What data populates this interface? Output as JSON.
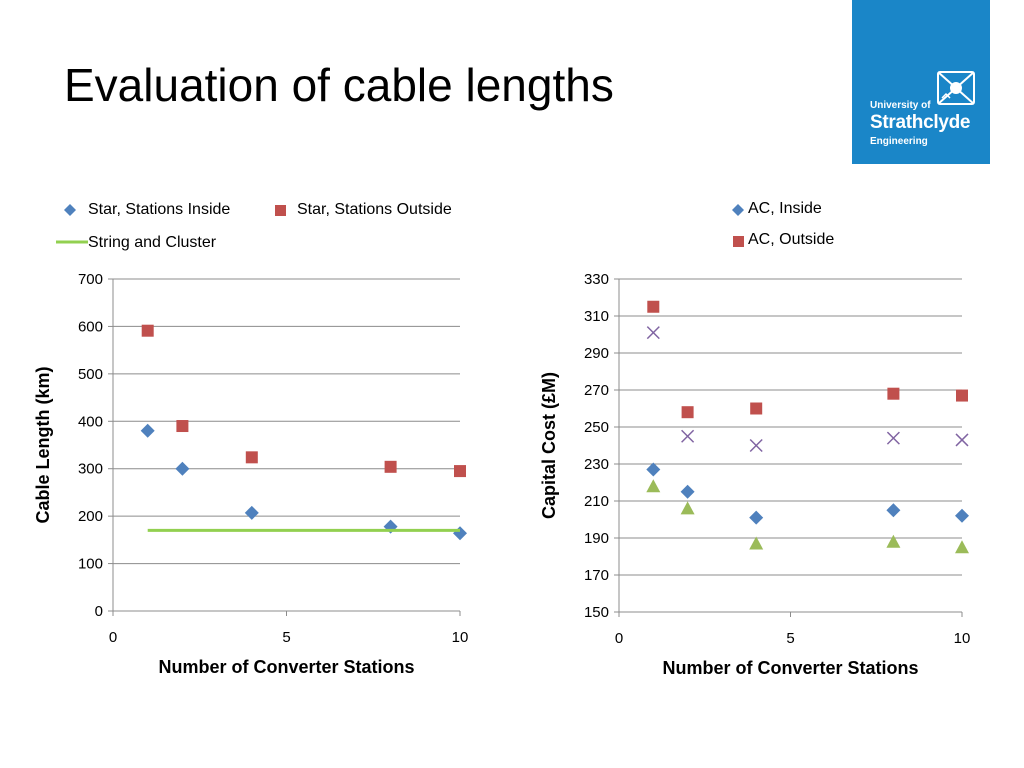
{
  "slide": {
    "title": "Evaluation of cable lengths",
    "logo": {
      "line1": "University of",
      "line2": "Strathclyde",
      "line3": "Engineering",
      "background": "#1a86c8"
    }
  },
  "chart_data": [
    {
      "type": "scatter",
      "title": "",
      "xlabel": "Number of Converter Stations",
      "ylabel": "Cable Length (km)",
      "xlim": [
        0,
        10
      ],
      "ylim": [
        0,
        700
      ],
      "xticks": [
        0,
        5,
        10
      ],
      "yticks": [
        0,
        100,
        200,
        300,
        400,
        500,
        600,
        700
      ],
      "grid": "horizontal",
      "legend_position": "top",
      "series": [
        {
          "name": "Star, Stations Inside",
          "marker": "diamond",
          "color": "#4f81bd",
          "x": [
            1,
            2,
            4,
            8,
            10
          ],
          "y": [
            380,
            300,
            207,
            178,
            164
          ]
        },
        {
          "name": "Star, Stations Outside",
          "marker": "square",
          "color": "#c0504d",
          "x": [
            1,
            2,
            4,
            8,
            10
          ],
          "y": [
            591,
            390,
            324,
            304,
            295
          ]
        },
        {
          "name": "String and Cluster",
          "marker": "line",
          "color": "#92d050",
          "x": [
            1,
            10
          ],
          "y": [
            170,
            170
          ]
        }
      ]
    },
    {
      "type": "scatter",
      "title": "",
      "xlabel": "Number of Converter Stations",
      "ylabel": "Capital Cost (£M)",
      "xlim": [
        0,
        10
      ],
      "ylim": [
        150,
        330
      ],
      "xticks": [
        0,
        5,
        10
      ],
      "yticks": [
        150,
        170,
        190,
        210,
        230,
        250,
        270,
        290,
        310,
        330
      ],
      "grid": "horizontal",
      "legend_position": "top",
      "series": [
        {
          "name": "AC, Inside",
          "marker": "diamond",
          "color": "#4f81bd",
          "x": [
            1,
            2,
            4,
            8,
            10
          ],
          "y": [
            227,
            215,
            201,
            205,
            202
          ]
        },
        {
          "name": "AC, Outside",
          "marker": "square",
          "color": "#c0504d",
          "x": [
            1,
            2,
            4,
            8,
            10
          ],
          "y": [
            315,
            258,
            260,
            268,
            267
          ]
        },
        {
          "marker": "triangle",
          "color": "#9bbb59",
          "x": [
            1,
            2,
            4,
            8,
            10
          ],
          "y": [
            218,
            206,
            187,
            188,
            185
          ]
        },
        {
          "marker": "x",
          "color": "#8064a2",
          "x": [
            1,
            2,
            4,
            8,
            10
          ],
          "y": [
            301,
            245,
            240,
            244,
            243
          ]
        }
      ]
    }
  ]
}
